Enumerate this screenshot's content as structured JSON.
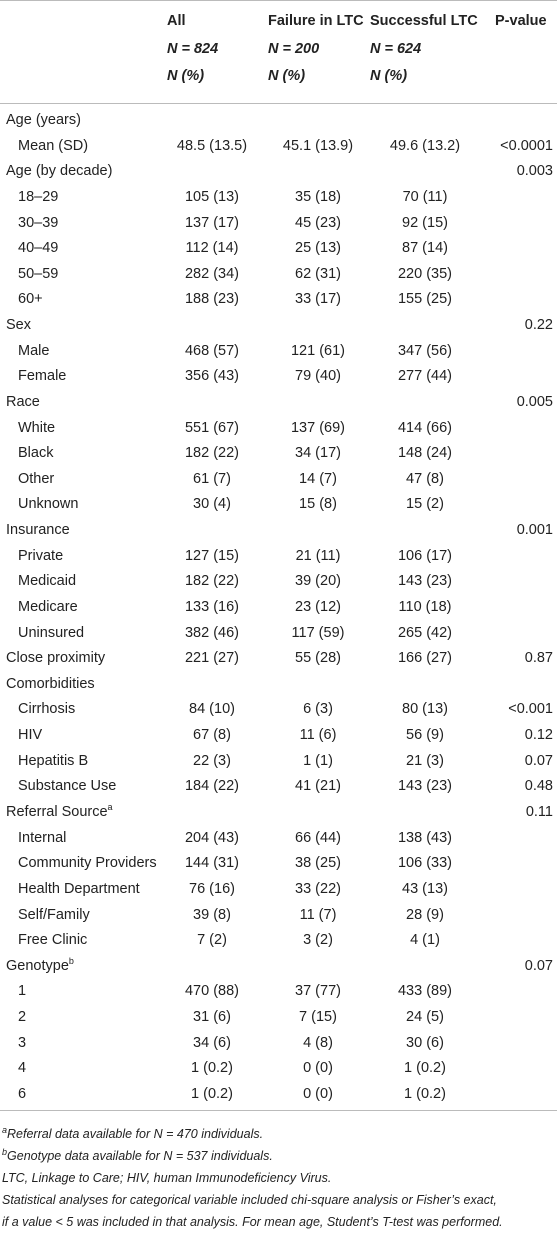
{
  "table": {
    "header": [
      [
        "All",
        "Failure in LTC",
        "Successful LTC",
        "P-value"
      ],
      [
        "N = 824",
        "N = 200",
        "N = 624"
      ],
      [
        "N (%)",
        "N (%)",
        "N (%)"
      ]
    ],
    "groups": [
      {
        "label": "Age (years)",
        "rows": [
          [
            "Mean (SD)",
            "48.5 (13.5)",
            "45.1 (13.9)",
            "49.6 (13.2)",
            "<0.0001"
          ]
        ]
      },
      {
        "label": "Age (by decade)",
        "p": "0.003",
        "rows": [
          [
            "18–29",
            "105 (13)",
            "35 (18)",
            "70 (11)"
          ],
          [
            "30–39",
            "137 (17)",
            "45 (23)",
            "92 (15)"
          ],
          [
            "40–49",
            "112 (14)",
            "25 (13)",
            "87 (14)"
          ],
          [
            "50–59",
            "282 (34)",
            "62 (31)",
            "220 (35)"
          ],
          [
            "60+",
            "188 (23)",
            "33 (17)",
            "155 (25)"
          ]
        ]
      },
      {
        "label": "Sex",
        "p": "0.22",
        "rows": [
          [
            "Male",
            "468 (57)",
            "121 (61)",
            "347 (56)"
          ],
          [
            "Female",
            "356 (43)",
            "79 (40)",
            "277 (44)"
          ]
        ]
      },
      {
        "label": "Race",
        "p": "0.005",
        "rows": [
          [
            "White",
            "551 (67)",
            "137 (69)",
            "414 (66)"
          ],
          [
            "Black",
            "182 (22)",
            "34 (17)",
            "148 (24)"
          ],
          [
            "Other",
            "61 (7)",
            "14 (7)",
            "47 (8)"
          ],
          [
            "Unknown",
            "30 (4)",
            "15 (8)",
            "15 (2)"
          ]
        ]
      },
      {
        "label": "Insurance",
        "p": "0.001",
        "rows": [
          [
            "Private",
            "127 (15)",
            "21 (11)",
            "106 (17)"
          ],
          [
            "Medicaid",
            "182 (22)",
            "39 (20)",
            "143 (23)"
          ],
          [
            "Medicare",
            "133 (16)",
            "23 (12)",
            "110 (18)"
          ],
          [
            "Uninsured",
            "382 (46)",
            "117 (59)",
            "265 (42)"
          ]
        ]
      },
      {
        "label": "Close proximity",
        "values": [
          "221 (27)",
          "55 (28)",
          "166 (27)",
          "0.87"
        ],
        "rows": []
      },
      {
        "label": "Comorbidities",
        "rows": [
          [
            "Cirrhosis",
            "84 (10)",
            "6 (3)",
            "80 (13)",
            "<0.001"
          ],
          [
            "HIV",
            "67 (8)",
            "11 (6)",
            "56 (9)",
            "0.12"
          ],
          [
            "Hepatitis B",
            "22 (3)",
            "1 (1)",
            "21 (3)",
            "0.07"
          ],
          [
            "Substance Use",
            "184 (22)",
            "41 (21)",
            "143 (23)",
            "0.48"
          ]
        ]
      },
      {
        "label": "Referral Source",
        "sup": "a",
        "p": "0.11",
        "rows": [
          [
            "Internal",
            "204 (43)",
            "66 (44)",
            "138 (43)"
          ],
          [
            "Community Providers",
            "144 (31)",
            "38 (25)",
            "106 (33)"
          ],
          [
            "Health Department",
            "76 (16)",
            "33 (22)",
            "43 (13)"
          ],
          [
            "Self/Family",
            "39 (8)",
            "11 (7)",
            "28 (9)"
          ],
          [
            "Free Clinic",
            "7 (2)",
            "3 (2)",
            "4 (1)"
          ]
        ]
      },
      {
        "label": "Genotype",
        "sup": "b",
        "p": "0.07",
        "rows": [
          [
            "1",
            "470 (88)",
            "37 (77)",
            "433 (89)"
          ],
          [
            "2",
            "31 (6)",
            "7 (15)",
            "24 (5)"
          ],
          [
            "3",
            "34 (6)",
            "4 (8)",
            "30 (6)"
          ],
          [
            "4",
            "1 (0.2)",
            "0 (0)",
            "1 (0.2)"
          ],
          [
            "6",
            "1 (0.2)",
            "0 (0)",
            "1 (0.2)"
          ]
        ]
      }
    ],
    "footnotes": [
      {
        "mark": "a",
        "text": "Referral data available for N = 470 individuals."
      },
      {
        "mark": "b",
        "text": "Genotype data available for N = 537 individuals."
      },
      {
        "text": "LTC, Linkage to Care; HIV, human Immunodeficiency Virus."
      },
      {
        "text": "Statistical analyses for categorical variable included chi-square analysis or Fisher’s exact,"
      },
      {
        "text": "if a value < 5 was included in that analysis. For mean age, Student’s T-test was performed."
      }
    ]
  }
}
